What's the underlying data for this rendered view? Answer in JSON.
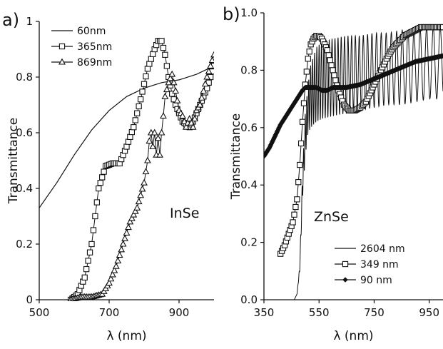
{
  "chart_data": [
    {
      "panel_label": "a)",
      "type": "line",
      "annotation": "InSe",
      "xlabel": "λ (nm)",
      "ylabel": "Transmittance",
      "xlim": [
        500,
        1000
      ],
      "ylim": [
        0,
        1
      ],
      "xticks": [
        500,
        700,
        900
      ],
      "xtick_labels": [
        "500",
        "700",
        "900"
      ],
      "yticks": [
        0,
        0.2,
        0.4,
        0.6,
        0.8,
        1
      ],
      "ytick_labels": [
        "0",
        "0.2",
        "0.4",
        "0.6",
        "0.8",
        "1"
      ],
      "grid": false,
      "legend_position": "top-left",
      "series": [
        {
          "name": "60nm",
          "marker": "none",
          "x": [
            500,
            550,
            600,
            650,
            700,
            750,
            800,
            850,
            900,
            950,
            1000
          ],
          "y": [
            0.33,
            0.42,
            0.52,
            0.61,
            0.68,
            0.73,
            0.76,
            0.78,
            0.79,
            0.81,
            0.84
          ]
        },
        {
          "name": "365nm",
          "marker": "square",
          "x": [
            590,
            610,
            630,
            650,
            670,
            690,
            710,
            730,
            750,
            770,
            790,
            810,
            830,
            840,
            850,
            860,
            870,
            880,
            890,
            900,
            910,
            920,
            930,
            940,
            950,
            960,
            970,
            980,
            990,
            1000
          ],
          "y": [
            0.0,
            0.02,
            0.08,
            0.2,
            0.4,
            0.48,
            0.49,
            0.49,
            0.55,
            0.62,
            0.72,
            0.83,
            0.9,
            0.93,
            0.93,
            0.88,
            0.8,
            0.74,
            0.7,
            0.67,
            0.64,
            0.63,
            0.62,
            0.64,
            0.67,
            0.7,
            0.73,
            0.76,
            0.8,
            0.84
          ]
        },
        {
          "name": "869nm",
          "marker": "triangle",
          "x": [
            590,
            620,
            650,
            680,
            700,
            720,
            740,
            760,
            780,
            800,
            810,
            815,
            820,
            825,
            830,
            835,
            840,
            845,
            850,
            855,
            860,
            870,
            880,
            890,
            900,
            910,
            920,
            930,
            940,
            950,
            960,
            970,
            980,
            990,
            1000
          ],
          "y": [
            0.0,
            0.01,
            0.01,
            0.02,
            0.06,
            0.12,
            0.2,
            0.28,
            0.33,
            0.42,
            0.5,
            0.57,
            0.6,
            0.55,
            0.6,
            0.52,
            0.58,
            0.52,
            0.6,
            0.66,
            0.73,
            0.78,
            0.81,
            0.75,
            0.68,
            0.66,
            0.62,
            0.65,
            0.62,
            0.68,
            0.7,
            0.75,
            0.8,
            0.84,
            0.88
          ]
        }
      ]
    },
    {
      "panel_label": "b)",
      "type": "line",
      "annotation": "ZnSe",
      "xlabel": "λ (nm)",
      "ylabel": "Transmittance",
      "xlim": [
        350,
        1000
      ],
      "ylim": [
        0,
        1
      ],
      "xticks": [
        350,
        550,
        750,
        950
      ],
      "xtick_labels": [
        "350",
        "550",
        "750",
        "950"
      ],
      "yticks": [
        0,
        0.2,
        0.4,
        0.6,
        0.8,
        1
      ],
      "ytick_labels": [
        "0.0",
        "0.2",
        "0.4",
        "0.6",
        "0.8",
        "1.0"
      ],
      "grid": false,
      "legend_position": "bottom-right",
      "series": [
        {
          "name": "2604 nm",
          "marker": "none",
          "style": "interference",
          "x": [
            460,
            470,
            480,
            490,
            500,
            510,
            520,
            540,
            560,
            600,
            650,
            700,
            750,
            800,
            850,
            900,
            950,
            1000
          ],
          "lower": [
            0.0,
            0.02,
            0.1,
            0.35,
            0.5,
            0.58,
            0.6,
            0.62,
            0.63,
            0.64,
            0.65,
            0.66,
            0.67,
            0.68,
            0.68,
            0.69,
            0.7,
            0.7
          ],
          "upper": [
            0.0,
            0.02,
            0.12,
            0.45,
            0.65,
            0.75,
            0.82,
            0.88,
            0.9,
            0.91,
            0.92,
            0.92,
            0.93,
            0.93,
            0.94,
            0.94,
            0.95,
            0.95
          ],
          "period_nm": [
            4,
            5,
            6,
            8,
            11,
            14,
            17,
            22,
            26
          ]
        },
        {
          "name": "349 nm",
          "marker": "square",
          "x": [
            410,
            425,
            440,
            455,
            470,
            480,
            490,
            500,
            510,
            520,
            530,
            540,
            550,
            560,
            580,
            600,
            620,
            640,
            660,
            680,
            700,
            720,
            740,
            760,
            780,
            800,
            820,
            840,
            860,
            880,
            900,
            920,
            940,
            960,
            980,
            1000
          ],
          "y": [
            0.16,
            0.19,
            0.23,
            0.27,
            0.35,
            0.47,
            0.62,
            0.75,
            0.84,
            0.89,
            0.91,
            0.92,
            0.92,
            0.91,
            0.87,
            0.8,
            0.73,
            0.68,
            0.66,
            0.66,
            0.67,
            0.69,
            0.73,
            0.77,
            0.81,
            0.85,
            0.88,
            0.9,
            0.92,
            0.93,
            0.94,
            0.95,
            0.95,
            0.95,
            0.95,
            0.95
          ]
        },
        {
          "name": "90 nm",
          "marker": "diamond",
          "x": [
            350,
            370,
            390,
            410,
            430,
            450,
            470,
            490,
            500,
            520,
            540,
            560,
            580,
            600,
            650,
            700,
            750,
            800,
            850,
            900,
            950,
            1000
          ],
          "y": [
            0.5,
            0.53,
            0.57,
            0.61,
            0.64,
            0.67,
            0.7,
            0.73,
            0.74,
            0.74,
            0.74,
            0.73,
            0.73,
            0.74,
            0.74,
            0.75,
            0.77,
            0.79,
            0.81,
            0.83,
            0.84,
            0.85
          ]
        }
      ]
    }
  ]
}
